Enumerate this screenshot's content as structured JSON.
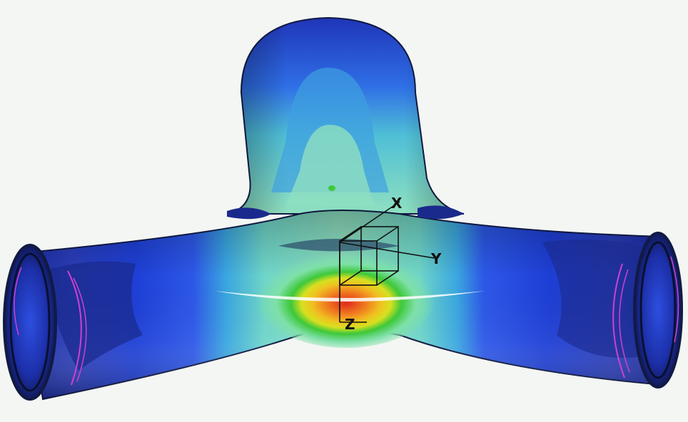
{
  "viewport": {
    "background": "#f4f6f3"
  },
  "model": {
    "shape": "y-branch-pipe",
    "contour_colors": [
      "#1a2a8c",
      "#1e3fd6",
      "#2f6fe6",
      "#3aa6e0",
      "#5ccfc0",
      "#8fe0b0",
      "#2fbf2f",
      "#d6e020",
      "#f0a020",
      "#e04020",
      "#ffffff"
    ],
    "edge_color": "#111a44",
    "end_mark_color": "#d040d0"
  },
  "triad": {
    "labels": {
      "x": "X",
      "y": "Y",
      "z": "Z"
    },
    "icons": [
      "coordinate-triad-icon",
      "element-box-icon"
    ]
  }
}
